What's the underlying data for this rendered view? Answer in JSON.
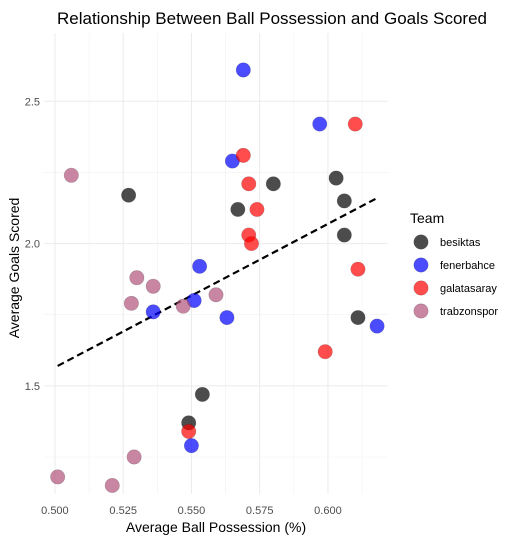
{
  "chart_data": {
    "type": "scatter",
    "title": "Relationship Between Ball Possession and Goals Scored",
    "xlabel": "Average Ball Possession (%)",
    "ylabel": "Average Goals Scored",
    "xlim": [
      0.496,
      0.622
    ],
    "ylim": [
      1.12,
      2.74
    ],
    "x_ticks": [
      0.5,
      0.525,
      0.55,
      0.575,
      0.6
    ],
    "x_tick_labels": [
      "0.500",
      "0.525",
      "0.550",
      "0.575",
      "0.600"
    ],
    "y_ticks": [
      1.5,
      2.0,
      2.5
    ],
    "y_tick_labels": [
      "1.5",
      "2.0",
      "2.5"
    ],
    "grid": true,
    "legend": {
      "title": "Team",
      "position": "right"
    },
    "series": [
      {
        "name": "besiktas",
        "color": "#000000",
        "points": [
          {
            "x": 0.527,
            "y": 2.17
          },
          {
            "x": 0.567,
            "y": 2.12
          },
          {
            "x": 0.58,
            "y": 2.21
          },
          {
            "x": 0.603,
            "y": 2.23
          },
          {
            "x": 0.606,
            "y": 2.15
          },
          {
            "x": 0.606,
            "y": 2.03
          },
          {
            "x": 0.611,
            "y": 1.74
          },
          {
            "x": 0.554,
            "y": 1.47
          },
          {
            "x": 0.549,
            "y": 1.37
          }
        ]
      },
      {
        "name": "fenerbahce",
        "color": "#0000FF",
        "points": [
          {
            "x": 0.569,
            "y": 2.61
          },
          {
            "x": 0.597,
            "y": 2.42
          },
          {
            "x": 0.565,
            "y": 2.29
          },
          {
            "x": 0.553,
            "y": 1.92
          },
          {
            "x": 0.551,
            "y": 1.8
          },
          {
            "x": 0.536,
            "y": 1.76
          },
          {
            "x": 0.563,
            "y": 1.74
          },
          {
            "x": 0.618,
            "y": 1.71
          },
          {
            "x": 0.55,
            "y": 1.29
          }
        ]
      },
      {
        "name": "galatasaray",
        "color": "#FF0000",
        "points": [
          {
            "x": 0.61,
            "y": 2.42
          },
          {
            "x": 0.569,
            "y": 2.31
          },
          {
            "x": 0.571,
            "y": 2.21
          },
          {
            "x": 0.574,
            "y": 2.12
          },
          {
            "x": 0.571,
            "y": 2.03
          },
          {
            "x": 0.572,
            "y": 2.0
          },
          {
            "x": 0.611,
            "y": 1.91
          },
          {
            "x": 0.599,
            "y": 1.62
          },
          {
            "x": 0.549,
            "y": 1.34
          }
        ]
      },
      {
        "name": "trabzonspor",
        "color": "#B0527A",
        "points": [
          {
            "x": 0.506,
            "y": 2.24
          },
          {
            "x": 0.53,
            "y": 1.88
          },
          {
            "x": 0.536,
            "y": 1.85
          },
          {
            "x": 0.528,
            "y": 1.79
          },
          {
            "x": 0.559,
            "y": 1.82
          },
          {
            "x": 0.547,
            "y": 1.78
          },
          {
            "x": 0.529,
            "y": 1.25
          },
          {
            "x": 0.501,
            "y": 1.18
          },
          {
            "x": 0.521,
            "y": 1.15
          }
        ]
      }
    ],
    "trendline": {
      "style": "dashed",
      "color": "#000000",
      "from": {
        "x": 0.501,
        "y": 1.57
      },
      "to": {
        "x": 0.618,
        "y": 2.16
      }
    }
  }
}
